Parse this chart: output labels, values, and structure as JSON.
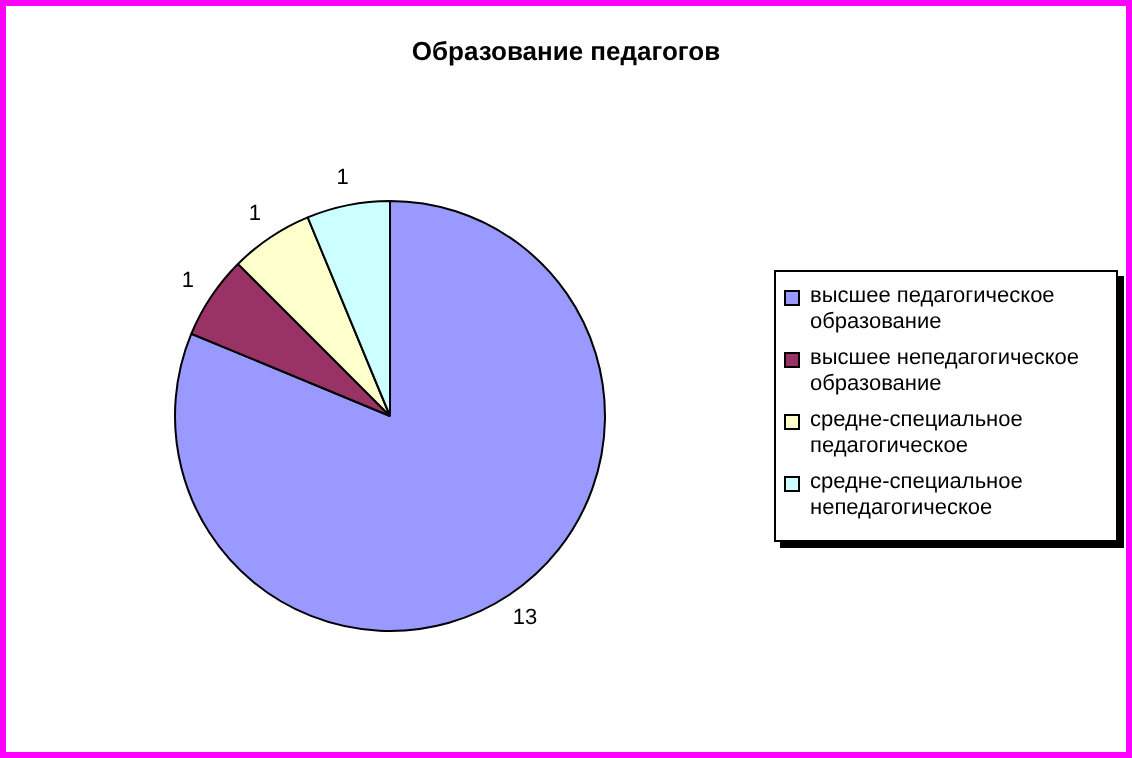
{
  "chart_data": {
    "type": "pie",
    "title": "Образование педагогов",
    "categories": [
      "высшее педагогическое образование",
      "высшее непедагогическое образование",
      "средне-специальное педагогическое",
      "средне-специальное непедагогическое"
    ],
    "values": [
      13,
      1,
      1,
      1
    ],
    "colors": [
      "#9999ff",
      "#993366",
      "#ffffcc",
      "#ccffff"
    ],
    "data_labels": true,
    "legend": "right"
  }
}
